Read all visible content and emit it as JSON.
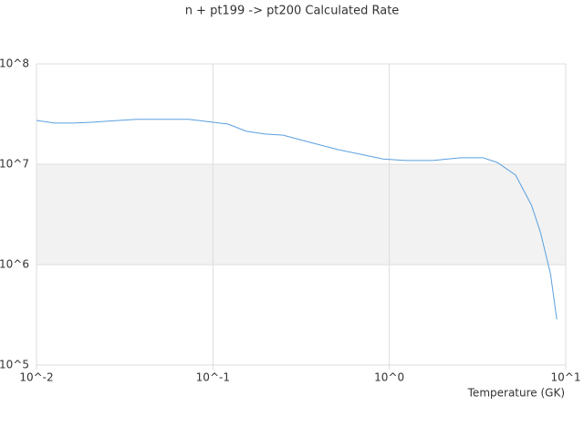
{
  "chart_data": {
    "type": "line",
    "title": "n + pt199 -> pt200 Calculated Rate",
    "x_label": "Temperature (GK)",
    "x_log": true,
    "y_log": true,
    "xlim": [
      0.01,
      10
    ],
    "ylim": [
      100000,
      100000000
    ],
    "xticks": [
      {
        "value": 0.01,
        "label": "10^-2"
      },
      {
        "value": 0.1,
        "label": "10^-1"
      },
      {
        "value": 1,
        "label": "10^0"
      },
      {
        "value": 10,
        "label": "10^1"
      }
    ],
    "yticks": [
      {
        "value": 100000,
        "label": "10^5"
      },
      {
        "value": 1000000,
        "label": "10^6"
      },
      {
        "value": 10000000,
        "label": "10^7"
      },
      {
        "value": 100000000,
        "label": "10^8"
      }
    ],
    "series": [
      {
        "color": "#5aa0e0",
        "x": [
          0.01,
          0.0127,
          0.0161,
          0.0204,
          0.0292,
          0.037,
          0.0729,
          0.122,
          0.155,
          0.197,
          0.25,
          0.357,
          0.51,
          0.73,
          0.92,
          1.24,
          1.77,
          2.53,
          3.4,
          4.1,
          5.2,
          6.4,
          7.2,
          8.2,
          8.9
        ],
        "values": [
          27300000,
          25700000,
          25700000,
          26200000,
          27300000,
          28000000,
          28000000,
          25100000,
          21300000,
          20000000,
          19500000,
          16500000,
          14000000,
          12300000,
          11300000,
          10900000,
          10900000,
          11600000,
          11600000,
          10400000,
          7780000,
          3900000,
          2080000,
          810000,
          285000
        ]
      }
    ]
  }
}
